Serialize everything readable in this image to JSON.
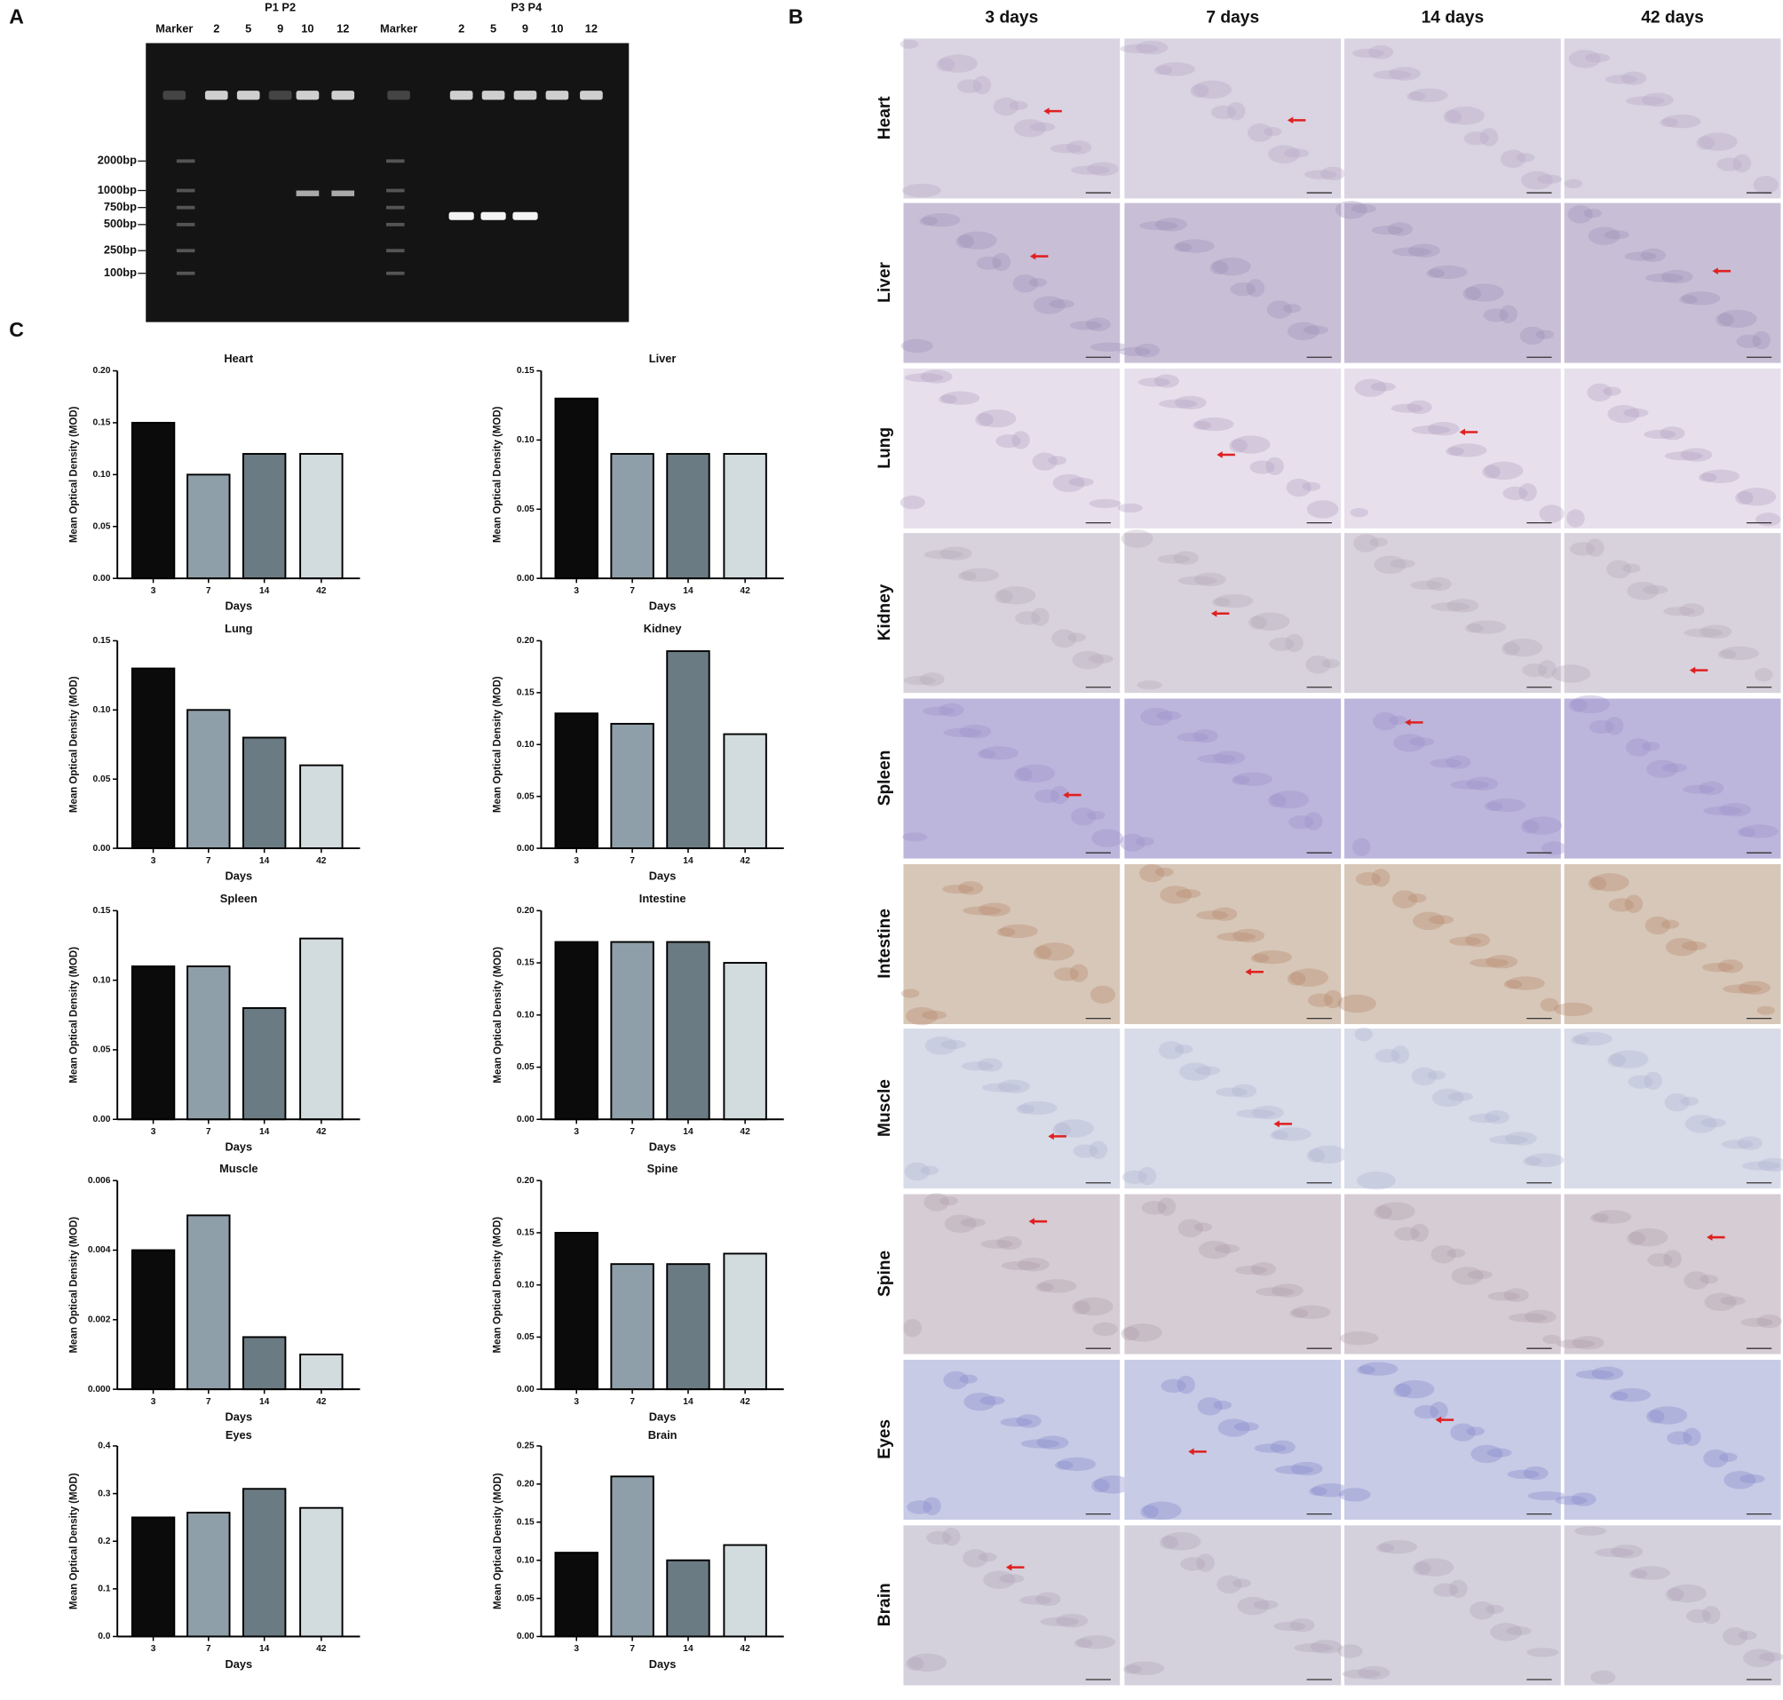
{
  "panel_labels": [
    "A",
    "B",
    "C"
  ],
  "gel": {
    "group_labels": [
      "P1 P2",
      "P3 P4"
    ],
    "lane_labels": [
      "Marker",
      "2",
      "5",
      "9",
      "10",
      "12",
      "Marker",
      "2",
      "5",
      "9",
      "10",
      "12"
    ],
    "ladder": [
      "2000bp",
      "1000bp",
      "750bp",
      "500bp",
      "250bp",
      "100bp"
    ]
  },
  "histology": {
    "columns": [
      "3 days",
      "7 days",
      "14 days",
      "42 days"
    ],
    "rows": [
      "Heart",
      "Liver",
      "Lung",
      "Kidney",
      "Spleen",
      "Intestine",
      "Muscle",
      "Spine",
      "Eyes",
      "Brain"
    ]
  },
  "chart_data": [
    {
      "type": "bar",
      "title": "Heart",
      "x_label": "Days",
      "y_label": "Mean Optical Density (MOD)",
      "categories": [
        "3",
        "7",
        "14",
        "42"
      ],
      "values": [
        0.15,
        0.1,
        0.12,
        0.12
      ],
      "colors": [
        "#0b0b0b",
        "#8f9fa9",
        "#6b7b83",
        "#d2dbde"
      ],
      "ylim": [
        0,
        0.2
      ],
      "yticks": [
        {
          "value": 0,
          "label": "0.00"
        },
        {
          "value": 0.05,
          "label": "0.05"
        },
        {
          "value": 0.1,
          "label": "0.10"
        },
        {
          "value": 0.15,
          "label": "0.15"
        },
        {
          "value": 0.2,
          "label": "0.20"
        }
      ]
    },
    {
      "type": "bar",
      "title": "Liver",
      "x_label": "Days",
      "y_label": "Mean Optical Density (MOD)",
      "categories": [
        "3",
        "7",
        "14",
        "42"
      ],
      "values": [
        0.13,
        0.09,
        0.09,
        0.09
      ],
      "colors": [
        "#0b0b0b",
        "#8f9fa9",
        "#6b7b83",
        "#d2dbde"
      ],
      "ylim": [
        0,
        0.15
      ],
      "yticks": [
        {
          "value": 0,
          "label": "0.00"
        },
        {
          "value": 0.05,
          "label": "0.05"
        },
        {
          "value": 0.1,
          "label": "0.10"
        },
        {
          "value": 0.15,
          "label": "0.15"
        }
      ]
    },
    {
      "type": "bar",
      "title": "Lung",
      "x_label": "Days",
      "y_label": "Mean Optical Density (MOD)",
      "categories": [
        "3",
        "7",
        "14",
        "42"
      ],
      "values": [
        0.13,
        0.1,
        0.08,
        0.06
      ],
      "colors": [
        "#0b0b0b",
        "#8f9fa9",
        "#6b7b83",
        "#d2dbde"
      ],
      "ylim": [
        0,
        0.15
      ],
      "yticks": [
        {
          "value": 0,
          "label": "0.00"
        },
        {
          "value": 0.05,
          "label": "0.05"
        },
        {
          "value": 0.1,
          "label": "0.10"
        },
        {
          "value": 0.15,
          "label": "0.15"
        }
      ]
    },
    {
      "type": "bar",
      "title": "Kidney",
      "x_label": "Days",
      "y_label": "Mean Optical Density (MOD)",
      "categories": [
        "3",
        "7",
        "14",
        "42"
      ],
      "values": [
        0.13,
        0.12,
        0.19,
        0.11
      ],
      "colors": [
        "#0b0b0b",
        "#8f9fa9",
        "#6b7b83",
        "#d2dbde"
      ],
      "ylim": [
        0,
        0.2
      ],
      "yticks": [
        {
          "value": 0,
          "label": "0.00"
        },
        {
          "value": 0.05,
          "label": "0.05"
        },
        {
          "value": 0.1,
          "label": "0.10"
        },
        {
          "value": 0.15,
          "label": "0.15"
        },
        {
          "value": 0.2,
          "label": "0.20"
        }
      ]
    },
    {
      "type": "bar",
      "title": "Spleen",
      "x_label": "Days",
      "y_label": "Mean Optical Density (MOD)",
      "categories": [
        "3",
        "7",
        "14",
        "42"
      ],
      "values": [
        0.11,
        0.11,
        0.08,
        0.13
      ],
      "colors": [
        "#0b0b0b",
        "#8f9fa9",
        "#6b7b83",
        "#d2dbde"
      ],
      "ylim": [
        0,
        0.15
      ],
      "yticks": [
        {
          "value": 0,
          "label": "0.00"
        },
        {
          "value": 0.05,
          "label": "0.05"
        },
        {
          "value": 0.1,
          "label": "0.10"
        },
        {
          "value": 0.15,
          "label": "0.15"
        }
      ]
    },
    {
      "type": "bar",
      "title": "Intestine",
      "x_label": "Days",
      "y_label": "Mean Optical Density (MOD)",
      "categories": [
        "3",
        "7",
        "14",
        "42"
      ],
      "values": [
        0.17,
        0.17,
        0.17,
        0.15
      ],
      "colors": [
        "#0b0b0b",
        "#8f9fa9",
        "#6b7b83",
        "#d2dbde"
      ],
      "ylim": [
        0,
        0.2
      ],
      "yticks": [
        {
          "value": 0,
          "label": "0.00"
        },
        {
          "value": 0.05,
          "label": "0.05"
        },
        {
          "value": 0.1,
          "label": "0.10"
        },
        {
          "value": 0.15,
          "label": "0.15"
        },
        {
          "value": 0.2,
          "label": "0.20"
        }
      ]
    },
    {
      "type": "bar",
      "title": "Muscle",
      "x_label": "Days",
      "y_label": "Mean Optical Density (MOD)",
      "categories": [
        "3",
        "7",
        "14",
        "42"
      ],
      "values": [
        0.004,
        0.005,
        0.0015,
        0.001
      ],
      "colors": [
        "#0b0b0b",
        "#8f9fa9",
        "#6b7b83",
        "#d2dbde"
      ],
      "ylim": [
        0,
        0.006
      ],
      "yticks": [
        {
          "value": 0,
          "label": "0.000"
        },
        {
          "value": 0.002,
          "label": "0.002"
        },
        {
          "value": 0.004,
          "label": "0.004"
        },
        {
          "value": 0.006,
          "label": "0.006"
        }
      ]
    },
    {
      "type": "bar",
      "title": "Spine",
      "x_label": "Days",
      "y_label": "Mean Optical Density (MOD)",
      "categories": [
        "3",
        "7",
        "14",
        "42"
      ],
      "values": [
        0.15,
        0.12,
        0.12,
        0.13
      ],
      "colors": [
        "#0b0b0b",
        "#8f9fa9",
        "#6b7b83",
        "#d2dbde"
      ],
      "ylim": [
        0,
        0.2
      ],
      "yticks": [
        {
          "value": 0,
          "label": "0.00"
        },
        {
          "value": 0.05,
          "label": "0.05"
        },
        {
          "value": 0.1,
          "label": "0.10"
        },
        {
          "value": 0.15,
          "label": "0.15"
        },
        {
          "value": 0.2,
          "label": "0.20"
        }
      ]
    },
    {
      "type": "bar",
      "title": "Eyes",
      "x_label": "Days",
      "y_label": "Mean Optical Density (MOD)",
      "categories": [
        "3",
        "7",
        "14",
        "42"
      ],
      "values": [
        0.25,
        0.26,
        0.31,
        0.27
      ],
      "colors": [
        "#0b0b0b",
        "#8f9fa9",
        "#6b7b83",
        "#d2dbde"
      ],
      "ylim": [
        0,
        0.4
      ],
      "yticks": [
        {
          "value": 0,
          "label": "0.0"
        },
        {
          "value": 0.1,
          "label": "0.1"
        },
        {
          "value": 0.2,
          "label": "0.2"
        },
        {
          "value": 0.3,
          "label": "0.3"
        },
        {
          "value": 0.4,
          "label": "0.4"
        }
      ]
    },
    {
      "type": "bar",
      "title": "Brain",
      "x_label": "Days",
      "y_label": "Mean Optical Density (MOD)",
      "categories": [
        "3",
        "7",
        "14",
        "42"
      ],
      "values": [
        0.11,
        0.21,
        0.1,
        0.12
      ],
      "colors": [
        "#0b0b0b",
        "#8f9fa9",
        "#6b7b83",
        "#d2dbde"
      ],
      "ylim": [
        0,
        0.25
      ],
      "yticks": [
        {
          "value": 0,
          "label": "0.00"
        },
        {
          "value": 0.05,
          "label": "0.05"
        },
        {
          "value": 0.1,
          "label": "0.10"
        },
        {
          "value": 0.15,
          "label": "0.15"
        },
        {
          "value": 0.2,
          "label": "0.20"
        },
        {
          "value": 0.25,
          "label": "0.25"
        }
      ]
    }
  ]
}
